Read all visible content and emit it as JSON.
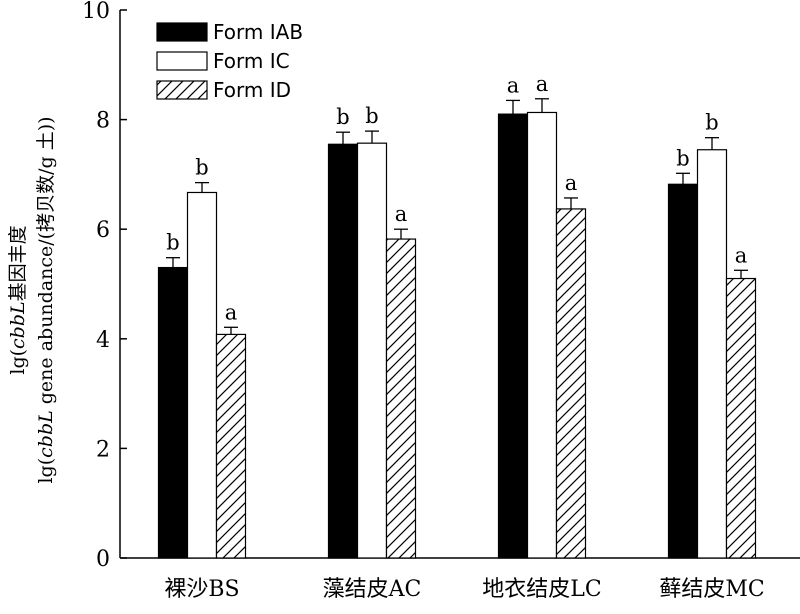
{
  "chart_data": {
    "type": "bar",
    "categories": [
      "裸沙BS",
      "藻结皮AC",
      "地衣结皮LC",
      "藓结皮MC"
    ],
    "series": [
      {
        "name": "Form IAB",
        "fill": "solid-black",
        "values": [
          5.3,
          7.55,
          8.1,
          6.82
        ],
        "errors": [
          0.18,
          0.22,
          0.25,
          0.2
        ],
        "labels": [
          "b",
          "b",
          "a",
          "b"
        ]
      },
      {
        "name": "Form IC",
        "fill": "white",
        "values": [
          6.67,
          7.57,
          8.13,
          7.45
        ],
        "errors": [
          0.18,
          0.22,
          0.25,
          0.22
        ],
        "labels": [
          "b",
          "b",
          "a",
          "b"
        ]
      },
      {
        "name": "Form ID",
        "fill": "hatched",
        "values": [
          4.08,
          5.82,
          6.37,
          5.1
        ],
        "errors": [
          0.13,
          0.18,
          0.2,
          0.15
        ],
        "labels": [
          "a",
          "a",
          "a",
          "a"
        ]
      }
    ],
    "yticks": [
      0,
      2,
      4,
      6,
      8,
      10
    ],
    "ylim": [
      0,
      10
    ],
    "ylabel_line1": "lg(cbbL基因丰度",
    "ylabel_line2": "lg(cbbL gene abundance/(拷贝数/g 土))",
    "legend_position": "top-left",
    "grid": false
  }
}
